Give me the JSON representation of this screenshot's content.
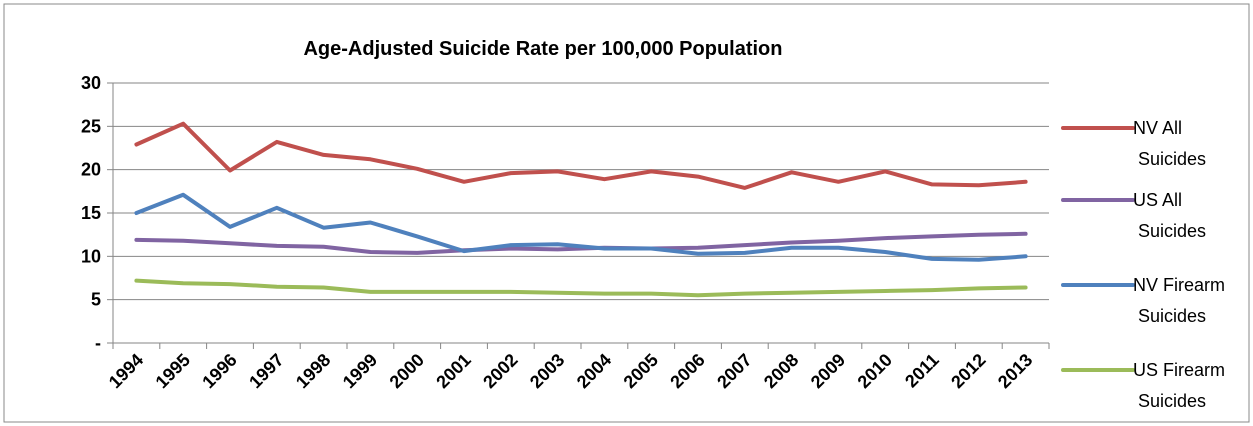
{
  "chart_data": {
    "type": "line",
    "title": "Age-Adjusted Suicide Rate per 100,000 Population",
    "xlabel": "",
    "ylabel": "",
    "categories": [
      "1994",
      "1995",
      "1996",
      "1997",
      "1998",
      "1999",
      "2000",
      "2001",
      "2002",
      "2003",
      "2004",
      "2005",
      "2006",
      "2007",
      "2008",
      "2009",
      "2010",
      "2011",
      "2012",
      "2013"
    ],
    "ylim": [
      0,
      30
    ],
    "yticks": [
      0,
      5,
      10,
      15,
      20,
      25,
      30
    ],
    "ytick_labels": [
      "-",
      "5",
      "10",
      "15",
      "20",
      "25",
      "30"
    ],
    "grid": true,
    "legend_position": "right",
    "series": [
      {
        "name_lines": [
          "NV All",
          "Suicides"
        ],
        "color": "#C0504D",
        "values": [
          22.9,
          25.3,
          19.9,
          23.2,
          21.7,
          21.2,
          20.1,
          18.6,
          19.6,
          19.8,
          18.9,
          19.8,
          19.2,
          17.9,
          19.7,
          18.6,
          19.8,
          18.3,
          18.2,
          18.6
        ]
      },
      {
        "name_lines": [
          "US All",
          "Suicides"
        ],
        "color": "#8064A2",
        "values": [
          11.9,
          11.8,
          11.5,
          11.2,
          11.1,
          10.5,
          10.4,
          10.7,
          10.9,
          10.8,
          11.0,
          10.9,
          11.0,
          11.3,
          11.6,
          11.8,
          12.1,
          12.3,
          12.5,
          12.6
        ]
      },
      {
        "name_lines": [
          "NV Firearm",
          "Suicides"
        ],
        "color": "#4F81BD",
        "values": [
          15.0,
          17.1,
          13.4,
          15.6,
          13.3,
          13.9,
          12.3,
          10.6,
          11.3,
          11.4,
          10.9,
          10.9,
          10.3,
          10.4,
          11.0,
          11.0,
          10.5,
          9.7,
          9.6,
          10.0
        ]
      },
      {
        "name_lines": [
          "US Firearm",
          "Suicides"
        ],
        "color": "#9BBB59",
        "values": [
          7.2,
          6.9,
          6.8,
          6.5,
          6.4,
          5.9,
          5.9,
          5.9,
          5.9,
          5.8,
          5.7,
          5.7,
          5.5,
          5.7,
          5.8,
          5.9,
          6.0,
          6.1,
          6.3,
          6.4
        ]
      }
    ]
  }
}
